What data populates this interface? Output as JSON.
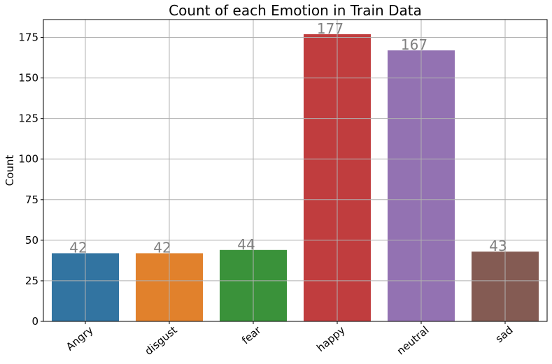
{
  "chart_data": {
    "type": "bar",
    "title": "Count of each Emotion in Train Data",
    "xlabel": "",
    "ylabel": "Count",
    "categories": [
      "Angry",
      "disgust",
      "fear",
      "happy",
      "neutral",
      "sad"
    ],
    "values": [
      42,
      42,
      44,
      177,
      167,
      43
    ],
    "data_labels": [
      "42",
      "42",
      "44",
      "177",
      "167",
      "43"
    ],
    "colors": [
      "#3274a1",
      "#e1812c",
      "#3a923a",
      "#c03d3e",
      "#9372b2",
      "#845b53"
    ],
    "ylim": [
      0,
      186
    ],
    "yticks": [
      0,
      25,
      50,
      75,
      100,
      125,
      150,
      175
    ],
    "ytick_labels": [
      "0",
      "25",
      "50",
      "75",
      "100",
      "125",
      "150",
      "175"
    ],
    "grid": true,
    "legend": "none"
  }
}
